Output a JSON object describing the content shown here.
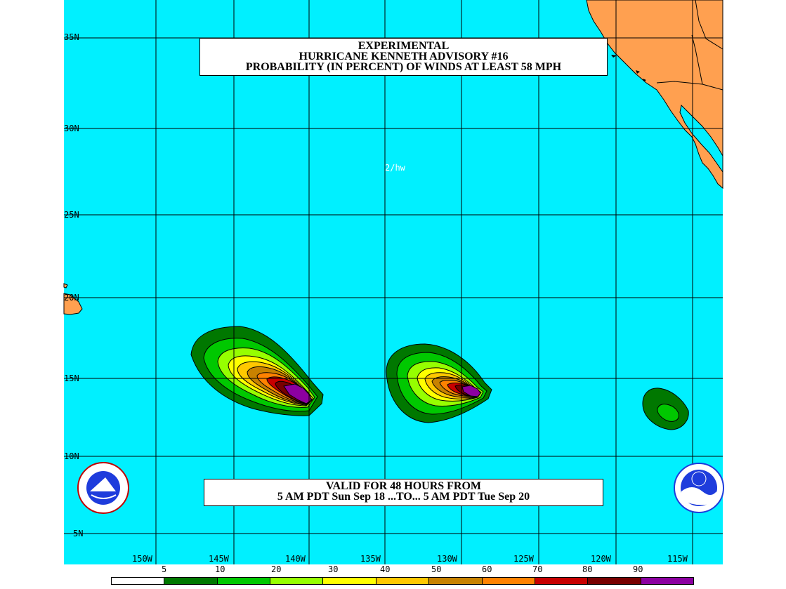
{
  "title": {
    "line1": "EXPERIMENTAL",
    "line2": "HURRICANE KENNETH ADVISORY #16",
    "line3": "PROBABILITY (IN PERCENT) OF WINDS AT LEAST 58 MPH"
  },
  "valid": {
    "line1": "VALID FOR 48 HOURS FROM",
    "line2": "5 AM PDT Sun Sep 18 ...TO... 5 AM PDT Tue Sep 20"
  },
  "initials": "2/hw",
  "lat_labels": [
    "35N",
    "30N",
    "25N",
    "20N",
    "15N",
    "10N",
    "5N"
  ],
  "lon_labels": [
    "150W",
    "145W",
    "140W",
    "135W",
    "130W",
    "125W",
    "120W",
    "115W"
  ],
  "legend": {
    "labels": [
      "5",
      "10",
      "20",
      "30",
      "40",
      "50",
      "60",
      "70",
      "80",
      "90"
    ],
    "colors": [
      "#ffffff",
      "#007800",
      "#00c800",
      "#96ff00",
      "#ffff00",
      "#ffc800",
      "#c88200",
      "#ff8200",
      "#c80000",
      "#780000",
      "#8c00a0"
    ]
  },
  "colors": {
    "ocean": "#00f0ff",
    "land": "#ffa050",
    "grid": "#000000"
  },
  "logos": {
    "left": "nws-logo-icon",
    "right": "noaa-logo-icon"
  }
}
